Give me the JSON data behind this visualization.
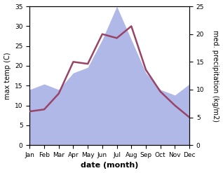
{
  "months": [
    "Jan",
    "Feb",
    "Mar",
    "Apr",
    "May",
    "Jun",
    "Jul",
    "Aug",
    "Sep",
    "Oct",
    "Nov",
    "Dec"
  ],
  "temp_max": [
    8.5,
    9.0,
    13.0,
    21.0,
    20.5,
    28.0,
    27.0,
    30.0,
    19.0,
    13.5,
    10.0,
    7.0
  ],
  "precip": [
    10.0,
    11.0,
    10.0,
    13.0,
    14.0,
    19.0,
    25.0,
    19.0,
    13.0,
    10.0,
    9.0,
    11.0
  ],
  "temp_color": "#994466",
  "precip_color": "#b0b8e8",
  "temp_ylim": [
    0,
    35
  ],
  "precip_ylim": [
    0,
    25
  ],
  "temp_yticks": [
    0,
    5,
    10,
    15,
    20,
    25,
    30,
    35
  ],
  "precip_yticks": [
    0,
    5,
    10,
    15,
    20,
    25
  ],
  "xlabel": "date (month)",
  "ylabel_left": "max temp (C)",
  "ylabel_right": "med. precipitation (kg/m2)",
  "bg_color": "#ffffff",
  "label_fontsize": 7,
  "tick_fontsize": 6.5,
  "xlabel_fontsize": 8,
  "linewidth": 1.8
}
